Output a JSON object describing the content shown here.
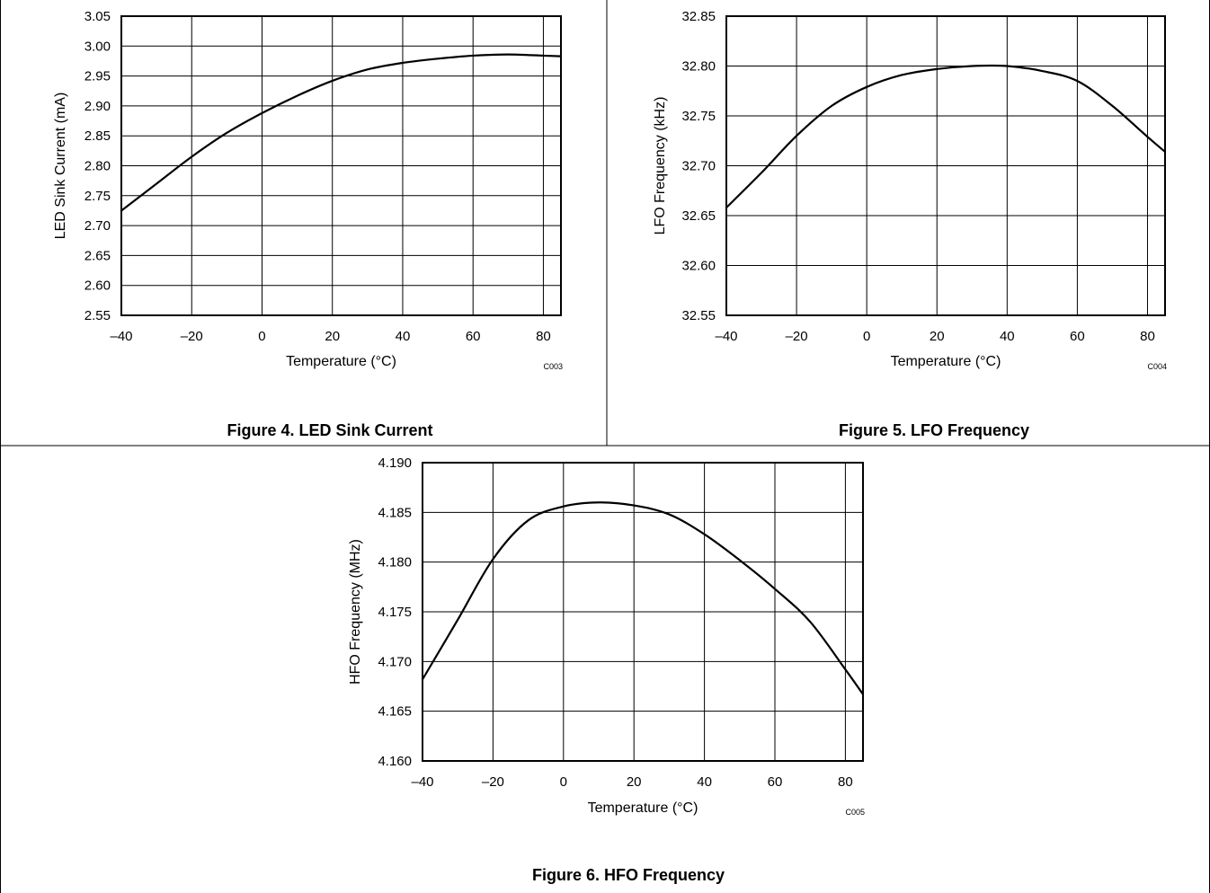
{
  "chart_data": [
    {
      "type": "line",
      "figure_caption": "Figure 4. LED Sink Current",
      "xlabel": "Temperature (°C)",
      "ylabel": "LED Sink Current (mA)",
      "code": "C003",
      "xlim": [
        -40,
        85
      ],
      "ylim": [
        2.55,
        3.05
      ],
      "xticks": [
        -40,
        -20,
        0,
        20,
        40,
        60,
        80
      ],
      "xtick_labels": [
        "–40",
        "–20",
        "0",
        "20",
        "40",
        "60",
        "80"
      ],
      "yticks": [
        2.55,
        2.6,
        2.65,
        2.7,
        2.75,
        2.8,
        2.85,
        2.9,
        2.95,
        3.0,
        3.05
      ],
      "ytick_labels": [
        "2.55",
        "2.60",
        "2.65",
        "2.70",
        "2.75",
        "2.80",
        "2.85",
        "2.90",
        "2.95",
        "3.00",
        "3.05"
      ],
      "grid": true,
      "series": [
        {
          "x": [
            -40,
            -30,
            -20,
            -10,
            0,
            10,
            20,
            30,
            40,
            50,
            60,
            70,
            80,
            85
          ],
          "y": [
            2.725,
            2.77,
            2.815,
            2.855,
            2.888,
            2.917,
            2.942,
            2.961,
            2.972,
            2.979,
            2.984,
            2.986,
            2.984,
            2.983
          ]
        }
      ]
    },
    {
      "type": "line",
      "figure_caption": "Figure 5. LFO Frequency",
      "xlabel": "Temperature (°C)",
      "ylabel": "LFO  Frequency (kHz)",
      "code": "C004",
      "xlim": [
        -40,
        85
      ],
      "ylim": [
        32.55,
        32.85
      ],
      "xticks": [
        -40,
        -20,
        0,
        20,
        40,
        60,
        80
      ],
      "xtick_labels": [
        "–40",
        "–20",
        "0",
        "20",
        "40",
        "60",
        "80"
      ],
      "yticks": [
        32.55,
        32.6,
        32.65,
        32.7,
        32.75,
        32.8,
        32.85
      ],
      "ytick_labels": [
        "32.55",
        "32.60",
        "32.65",
        "32.70",
        "32.75",
        "32.80",
        "32.85"
      ],
      "grid": true,
      "series": [
        {
          "x": [
            -40,
            -30,
            -20,
            -10,
            0,
            10,
            20,
            30,
            40,
            50,
            60,
            70,
            80,
            85
          ],
          "y": [
            32.658,
            32.693,
            32.73,
            32.76,
            32.779,
            32.791,
            32.797,
            32.8,
            32.8,
            32.795,
            32.785,
            32.76,
            32.729,
            32.714
          ]
        }
      ]
    },
    {
      "type": "line",
      "figure_caption": "Figure 6. HFO Frequency",
      "xlabel": "Temperature (°C)",
      "ylabel": "HFO  Frequency (MHz)",
      "code": "C005",
      "xlim": [
        -40,
        85
      ],
      "ylim": [
        4.16,
        4.19
      ],
      "xticks": [
        -40,
        -20,
        0,
        20,
        40,
        60,
        80
      ],
      "xtick_labels": [
        "–40",
        "–20",
        "0",
        "20",
        "40",
        "60",
        "80"
      ],
      "yticks": [
        4.16,
        4.165,
        4.17,
        4.175,
        4.18,
        4.185,
        4.19
      ],
      "ytick_labels": [
        "4.160",
        "4.165",
        "4.170",
        "4.175",
        "4.180",
        "4.185",
        "4.190"
      ],
      "grid": true,
      "series": [
        {
          "x": [
            -40,
            -30,
            -20,
            -10,
            0,
            10,
            20,
            30,
            40,
            50,
            60,
            70,
            80,
            85
          ],
          "y": [
            4.1682,
            4.1742,
            4.1803,
            4.1842,
            4.1856,
            4.186,
            4.1857,
            4.1848,
            4.1828,
            4.1802,
            4.1773,
            4.174,
            4.1692,
            4.1667
          ]
        }
      ]
    }
  ]
}
